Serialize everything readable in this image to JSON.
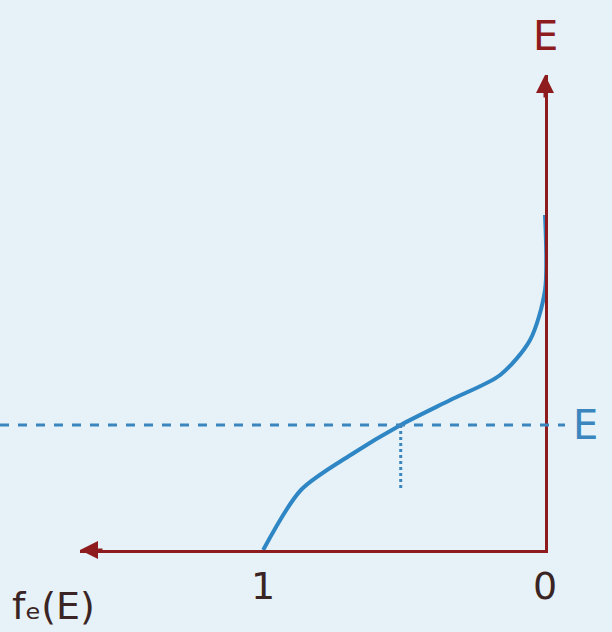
{
  "chart_data": {
    "type": "line",
    "xlabel": "fₑ(E)",
    "ylabel": "E",
    "x": [
      1,
      0.866,
      0.69,
      0.512,
      0.336,
      0.159,
      0.053,
      0,
      0
    ],
    "series": [
      {
        "color": "#2f86c4",
        "values": [
          0,
          0.48,
          0.76,
          1,
          1.2,
          1.4,
          1.68,
          2.08,
          2.68
        ]
      }
    ],
    "xlim": [
      1.65,
      0
    ],
    "ylim": [
      0,
      3.8
    ],
    "xticks": [
      1,
      0
    ],
    "tick_labels": "x",
    "grid": false,
    "reference_line": {
      "y": 1,
      "label": "E",
      "line_style": "dash",
      "color": "#3b86bf"
    },
    "drop_line": {
      "x": 0.512,
      "y": [
        1,
        0.48
      ],
      "line_style": "dot"
    }
  }
}
